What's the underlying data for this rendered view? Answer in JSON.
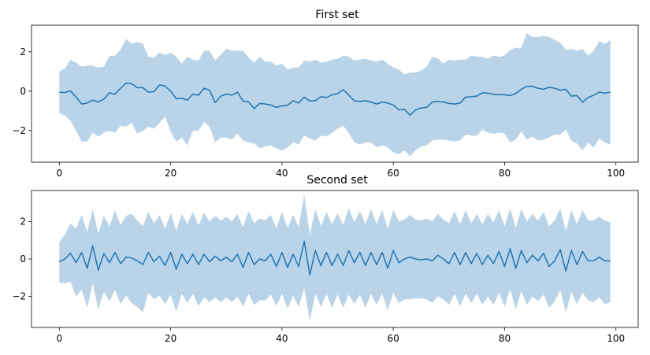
{
  "chart_data": [
    {
      "type": "line",
      "title": "First set",
      "xlabel": "",
      "ylabel": "",
      "xlim": [
        -5,
        104
      ],
      "ylim": [
        -3.6,
        3.35
      ],
      "xticks": [
        0,
        20,
        40,
        60,
        80,
        100
      ],
      "yticks": [
        -2,
        0,
        2
      ],
      "grid": false,
      "legend": "none",
      "band_color": "#b9d3e8",
      "line_color": "#1f77b4",
      "x": [
        0,
        1,
        2,
        3,
        4,
        5,
        6,
        7,
        8,
        9,
        10,
        11,
        12,
        13,
        14,
        15,
        16,
        17,
        18,
        19,
        20,
        21,
        22,
        23,
        24,
        25,
        26,
        27,
        28,
        29,
        30,
        31,
        32,
        33,
        34,
        35,
        36,
        37,
        38,
        39,
        40,
        41,
        42,
        43,
        44,
        45,
        46,
        47,
        48,
        49,
        50,
        51,
        52,
        53,
        54,
        55,
        56,
        57,
        58,
        59,
        60,
        61,
        62,
        63,
        64,
        65,
        66,
        67,
        68,
        69,
        70,
        71,
        72,
        73,
        74,
        75,
        76,
        77,
        78,
        79,
        80,
        81,
        82,
        83,
        84,
        85,
        86,
        87,
        88,
        89,
        90,
        91,
        92,
        93,
        94,
        95,
        96,
        97,
        98,
        99
      ],
      "mean": [
        -0.05,
        -0.07,
        0.02,
        -0.3,
        -0.65,
        -0.6,
        -0.45,
        -0.55,
        -0.4,
        -0.08,
        -0.15,
        0.15,
        0.42,
        0.38,
        0.18,
        0.18,
        -0.05,
        -0.02,
        0.32,
        0.27,
        0.0,
        -0.38,
        -0.36,
        -0.45,
        -0.15,
        -0.2,
        0.15,
        0.05,
        -0.58,
        -0.25,
        -0.15,
        -0.2,
        -0.05,
        -0.5,
        -0.55,
        -0.88,
        -0.62,
        -0.65,
        -0.7,
        -0.82,
        -0.75,
        -0.72,
        -0.48,
        -0.6,
        -0.3,
        -0.5,
        -0.48,
        -0.28,
        -0.32,
        -0.18,
        -0.12,
        0.08,
        -0.2,
        -0.48,
        -0.52,
        -0.48,
        -0.55,
        -0.65,
        -0.55,
        -0.6,
        -0.7,
        -0.95,
        -0.92,
        -1.22,
        -0.95,
        -0.85,
        -0.82,
        -0.55,
        -0.52,
        -0.55,
        -0.62,
        -0.65,
        -0.6,
        -0.3,
        -0.28,
        -0.25,
        -0.08,
        -0.1,
        -0.15,
        -0.18,
        -0.18,
        -0.22,
        -0.12,
        0.1,
        0.25,
        0.25,
        0.15,
        0.1,
        0.2,
        0.15,
        0.05,
        0.1,
        -0.25,
        -0.22,
        -0.55,
        -0.32,
        -0.2,
        -0.05,
        -0.1,
        -0.05
      ],
      "upper": [
        1.0,
        1.15,
        1.6,
        1.45,
        1.25,
        1.3,
        1.3,
        1.2,
        1.25,
        1.8,
        1.8,
        2.1,
        2.65,
        2.4,
        2.5,
        2.4,
        1.75,
        1.7,
        1.95,
        1.85,
        1.95,
        1.75,
        1.4,
        1.75,
        1.6,
        1.55,
        2.05,
        2.05,
        1.55,
        1.85,
        2.15,
        2.05,
        2.05,
        2.05,
        1.7,
        1.45,
        1.75,
        1.5,
        1.5,
        1.3,
        1.4,
        1.1,
        1.2,
        1.2,
        1.55,
        1.5,
        1.6,
        1.45,
        1.5,
        1.6,
        1.65,
        1.8,
        1.75,
        1.55,
        1.6,
        1.65,
        1.55,
        1.5,
        1.6,
        1.4,
        1.2,
        1.1,
        0.85,
        0.95,
        0.95,
        1.05,
        1.25,
        1.75,
        1.65,
        1.4,
        1.6,
        1.55,
        1.6,
        1.6,
        1.8,
        1.75,
        1.75,
        1.65,
        1.8,
        1.75,
        1.8,
        2.1,
        2.2,
        2.2,
        2.95,
        2.75,
        2.75,
        2.8,
        2.75,
        2.6,
        2.45,
        2.1,
        2.15,
        2.05,
        2.15,
        1.8,
        2.05,
        2.55,
        2.4,
        2.6
      ],
      "lower": [
        -1.1,
        -1.25,
        -1.5,
        -2.0,
        -2.55,
        -2.55,
        -2.1,
        -2.3,
        -2.1,
        -2.0,
        -2.1,
        -1.75,
        -1.8,
        -1.6,
        -2.15,
        -2.0,
        -1.8,
        -1.9,
        -1.6,
        -1.3,
        -2.05,
        -2.55,
        -2.35,
        -2.75,
        -2.0,
        -2.0,
        -1.55,
        -1.8,
        -2.6,
        -2.35,
        -2.35,
        -2.45,
        -2.15,
        -2.5,
        -2.6,
        -2.65,
        -2.9,
        -2.8,
        -2.75,
        -2.9,
        -3.0,
        -2.85,
        -2.6,
        -2.7,
        -2.25,
        -2.4,
        -2.5,
        -2.25,
        -2.3,
        -2.1,
        -1.9,
        -1.75,
        -2.1,
        -2.6,
        -2.7,
        -2.6,
        -2.6,
        -2.85,
        -2.75,
        -2.85,
        -3.1,
        -3.2,
        -3.0,
        -3.3,
        -3.0,
        -2.8,
        -2.75,
        -2.5,
        -2.45,
        -2.45,
        -2.5,
        -2.55,
        -2.5,
        -2.2,
        -2.25,
        -2.25,
        -1.95,
        -2.1,
        -2.15,
        -2.1,
        -2.15,
        -2.6,
        -2.45,
        -2.05,
        -2.45,
        -2.3,
        -2.5,
        -2.45,
        -2.35,
        -2.2,
        -2.2,
        -1.95,
        -2.5,
        -2.65,
        -3.0,
        -2.6,
        -2.85,
        -2.4,
        -2.6,
        -2.7
      ]
    },
    {
      "type": "line",
      "title": "Second set",
      "xlabel": "",
      "ylabel": "",
      "xlim": [
        -5,
        104
      ],
      "ylim": [
        -3.65,
        3.65
      ],
      "xticks": [
        0,
        20,
        40,
        60,
        80,
        100
      ],
      "yticks": [
        -2,
        0,
        2
      ],
      "grid": false,
      "legend": "none",
      "band_color": "#b9d3e8",
      "line_color": "#1f77b4",
      "x": [
        0,
        1,
        2,
        3,
        4,
        5,
        6,
        7,
        8,
        9,
        10,
        11,
        12,
        13,
        14,
        15,
        16,
        17,
        18,
        19,
        20,
        21,
        22,
        23,
        24,
        25,
        26,
        27,
        28,
        29,
        30,
        31,
        32,
        33,
        34,
        35,
        36,
        37,
        38,
        39,
        40,
        41,
        42,
        43,
        44,
        45,
        46,
        47,
        48,
        49,
        50,
        51,
        52,
        53,
        54,
        55,
        56,
        57,
        58,
        59,
        60,
        61,
        62,
        63,
        64,
        65,
        66,
        67,
        68,
        69,
        70,
        71,
        72,
        73,
        74,
        75,
        76,
        77,
        78,
        79,
        80,
        81,
        82,
        83,
        84,
        85,
        86,
        87,
        88,
        89,
        90,
        91,
        92,
        93,
        94,
        95,
        96,
        97,
        98,
        99
      ],
      "mean": [
        -0.15,
        0.0,
        0.3,
        -0.2,
        0.35,
        -0.5,
        0.7,
        -0.6,
        0.3,
        -0.2,
        0.35,
        -0.25,
        0.1,
        0.05,
        -0.1,
        -0.3,
        0.35,
        -0.15,
        0.15,
        -0.35,
        0.35,
        -0.55,
        0.25,
        -0.25,
        0.25,
        -0.3,
        0.25,
        -0.15,
        0.15,
        -0.1,
        0.1,
        -0.15,
        0.25,
        -0.45,
        0.35,
        -0.3,
        0.0,
        -0.1,
        0.25,
        -0.4,
        0.35,
        -0.45,
        0.25,
        -0.4,
        0.95,
        -0.85,
        0.45,
        -0.35,
        0.35,
        -0.35,
        0.25,
        -0.35,
        0.45,
        -0.2,
        0.35,
        -0.35,
        0.35,
        -0.3,
        0.35,
        -0.5,
        0.45,
        -0.2,
        0.0,
        0.1,
        0.0,
        -0.05,
        0.0,
        -0.1,
        0.2,
        0.0,
        -0.25,
        0.35,
        -0.3,
        0.35,
        -0.25,
        0.3,
        -0.3,
        0.2,
        -0.25,
        0.4,
        -0.4,
        0.55,
        -0.5,
        0.45,
        -0.2,
        0.2,
        -0.1,
        0.3,
        -0.4,
        -0.1,
        0.5,
        -0.65,
        0.45,
        -0.3,
        0.4,
        -0.1,
        -0.1,
        0.1,
        -0.1,
        -0.1
      ],
      "upper": [
        0.9,
        1.3,
        1.9,
        1.6,
        2.35,
        1.45,
        2.65,
        1.35,
        2.3,
        1.75,
        2.6,
        1.8,
        2.3,
        2.4,
        2.05,
        1.75,
        2.5,
        1.9,
        2.35,
        1.6,
        2.45,
        1.5,
        2.4,
        1.85,
        2.5,
        1.8,
        2.45,
        2.0,
        2.3,
        2.05,
        2.25,
        2.0,
        2.4,
        1.7,
        2.55,
        1.9,
        2.15,
        2.05,
        2.35,
        1.65,
        2.5,
        1.65,
        2.35,
        1.7,
        3.4,
        1.3,
        2.65,
        1.75,
        2.5,
        1.85,
        2.45,
        1.8,
        2.7,
        1.95,
        2.55,
        1.85,
        2.65,
        1.85,
        2.6,
        1.6,
        2.6,
        2.0,
        2.1,
        2.35,
        2.1,
        2.05,
        2.15,
        2.0,
        2.4,
        2.1,
        1.9,
        2.55,
        1.85,
        2.6,
        1.9,
        2.4,
        1.85,
        2.4,
        1.95,
        2.6,
        1.75,
        2.7,
        1.65,
        2.65,
        2.0,
        2.4,
        2.05,
        2.5,
        1.75,
        2.05,
        2.7,
        1.5,
        2.6,
        1.85,
        2.6,
        2.05,
        2.05,
        2.25,
        2.05,
        1.95
      ],
      "lower": [
        -1.25,
        -1.3,
        -1.2,
        -2.0,
        -1.65,
        -2.6,
        -1.3,
        -2.7,
        -1.75,
        -2.25,
        -1.65,
        -2.4,
        -1.95,
        -2.35,
        -2.55,
        -2.85,
        -1.8,
        -2.15,
        -1.95,
        -2.4,
        -1.9,
        -2.8,
        -1.85,
        -2.35,
        -1.85,
        -2.5,
        -2.05,
        -2.3,
        -2.05,
        -2.3,
        -2.05,
        -2.3,
        -2.0,
        -2.55,
        -1.85,
        -2.45,
        -2.2,
        -2.2,
        -1.9,
        -2.5,
        -1.85,
        -2.65,
        -1.95,
        -2.55,
        -1.55,
        -3.3,
        -1.85,
        -2.55,
        -1.85,
        -2.6,
        -1.9,
        -2.6,
        -1.9,
        -2.4,
        -1.9,
        -2.6,
        -1.85,
        -2.45,
        -1.85,
        -2.75,
        -1.8,
        -2.35,
        -2.15,
        -2.15,
        -2.1,
        -2.1,
        -2.15,
        -2.35,
        -2.0,
        -2.15,
        -2.45,
        -1.85,
        -2.5,
        -1.85,
        -2.35,
        -1.85,
        -2.45,
        -2.0,
        -2.45,
        -1.8,
        -2.55,
        -1.6,
        -2.7,
        -1.7,
        -2.45,
        -2.0,
        -2.25,
        -1.9,
        -2.6,
        -2.25,
        -1.65,
        -2.85,
        -1.75,
        -2.4,
        -1.8,
        -2.2,
        -2.3,
        -2.05,
        -2.4,
        -2.3
      ]
    }
  ]
}
